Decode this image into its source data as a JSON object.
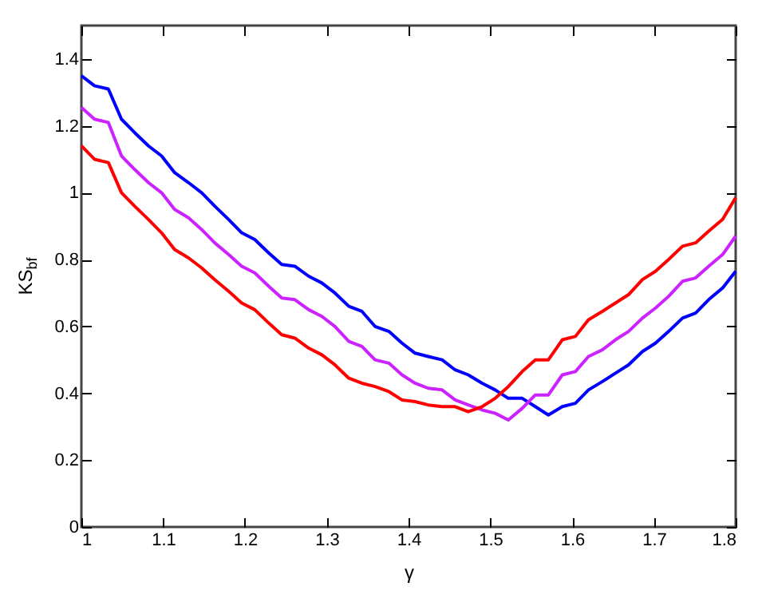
{
  "chart_data": {
    "type": "line",
    "xlabel": "γ",
    "ylabel": "KS$_{bf}$",
    "xlim": [
      1,
      1.8
    ],
    "ylim": [
      0,
      1.5
    ],
    "xticks": [
      1,
      1.1,
      1.2,
      1.3,
      1.4,
      1.5,
      1.6,
      1.7,
      1.8
    ],
    "yticks": [
      0,
      0.2,
      0.4,
      0.6,
      0.8,
      1,
      1.2,
      1.4
    ],
    "grid": false,
    "x": [
      1.0,
      1.016,
      1.033,
      1.049,
      1.065,
      1.082,
      1.098,
      1.114,
      1.131,
      1.147,
      1.163,
      1.18,
      1.196,
      1.212,
      1.229,
      1.245,
      1.261,
      1.278,
      1.294,
      1.31,
      1.327,
      1.343,
      1.359,
      1.376,
      1.392,
      1.408,
      1.424,
      1.441,
      1.457,
      1.473,
      1.49,
      1.506,
      1.522,
      1.539,
      1.555,
      1.571,
      1.588,
      1.604,
      1.62,
      1.637,
      1.653,
      1.669,
      1.686,
      1.702,
      1.718,
      1.735,
      1.751,
      1.767,
      1.784,
      1.8
    ],
    "series": [
      {
        "color": "#0000ff",
        "values": [
          1.35,
          1.32,
          1.31,
          1.22,
          1.18,
          1.14,
          1.11,
          1.06,
          1.03,
          1.0,
          0.96,
          0.92,
          0.88,
          0.86,
          0.82,
          0.785,
          0.78,
          0.75,
          0.73,
          0.7,
          0.66,
          0.645,
          0.6,
          0.585,
          0.55,
          0.52,
          0.51,
          0.5,
          0.47,
          0.455,
          0.43,
          0.41,
          0.385,
          0.385,
          0.36,
          0.335,
          0.36,
          0.37,
          0.41,
          0.435,
          0.46,
          0.485,
          0.525,
          0.55,
          0.585,
          0.625,
          0.64,
          0.68,
          0.715,
          0.765
        ]
      },
      {
        "color": "#cc22ff",
        "values": [
          1.255,
          1.22,
          1.21,
          1.11,
          1.07,
          1.03,
          1.0,
          0.95,
          0.925,
          0.89,
          0.85,
          0.815,
          0.78,
          0.76,
          0.72,
          0.685,
          0.68,
          0.65,
          0.63,
          0.6,
          0.555,
          0.54,
          0.5,
          0.49,
          0.455,
          0.43,
          0.415,
          0.41,
          0.38,
          0.365,
          0.35,
          0.34,
          0.32,
          0.355,
          0.395,
          0.395,
          0.455,
          0.465,
          0.51,
          0.53,
          0.56,
          0.585,
          0.625,
          0.655,
          0.69,
          0.735,
          0.745,
          0.78,
          0.815,
          0.87
        ]
      },
      {
        "color": "#ff0000",
        "values": [
          1.14,
          1.1,
          1.09,
          1.0,
          0.96,
          0.92,
          0.88,
          0.83,
          0.805,
          0.775,
          0.74,
          0.705,
          0.67,
          0.65,
          0.61,
          0.575,
          0.565,
          0.535,
          0.515,
          0.485,
          0.445,
          0.43,
          0.42,
          0.405,
          0.38,
          0.375,
          0.365,
          0.36,
          0.36,
          0.345,
          0.36,
          0.385,
          0.42,
          0.465,
          0.5,
          0.5,
          0.56,
          0.57,
          0.62,
          0.645,
          0.67,
          0.695,
          0.74,
          0.765,
          0.8,
          0.84,
          0.85,
          0.885,
          0.92,
          0.985
        ]
      }
    ]
  }
}
